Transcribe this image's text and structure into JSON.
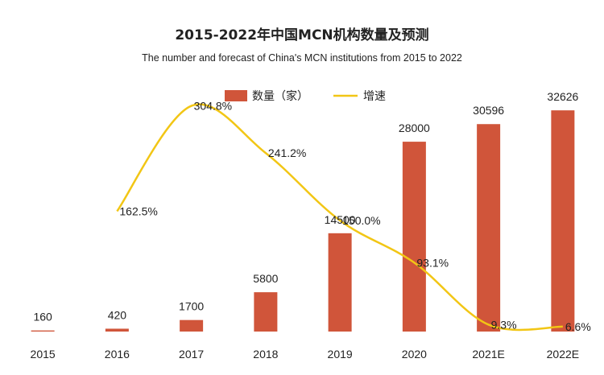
{
  "chart_data": {
    "type": "bar",
    "title": "2015-2022年中国MCN机构数量及预测",
    "subtitle": "The number and forecast of China's MCN institutions from 2015 to 2022",
    "categories": [
      "2015",
      "2016",
      "2017",
      "2018",
      "2019",
      "2020",
      "2021E",
      "2022E"
    ],
    "series": [
      {
        "name": "数量（家）",
        "type": "bar",
        "color": "#D0553A",
        "values": [
          160,
          420,
          1700,
          5800,
          14500,
          28000,
          30596,
          32626
        ],
        "labels": [
          "160",
          "420",
          "1700",
          "5800",
          "14500",
          "28000",
          "30596",
          "32626"
        ]
      },
      {
        "name": "增速",
        "type": "line",
        "color": "#F2C615",
        "values": [
          null,
          162.5,
          304.8,
          241.2,
          150.0,
          93.1,
          9.3,
          6.6
        ],
        "labels": [
          "",
          "162.5%",
          "304.8%",
          "241.2%",
          "150.0%",
          "93.1%",
          "9.3%",
          "6.6%"
        ]
      }
    ],
    "bar_ylim": [
      0,
      40000
    ],
    "line_ylim": [
      0,
      400
    ],
    "legend_position": "top-center",
    "grid": false
  }
}
